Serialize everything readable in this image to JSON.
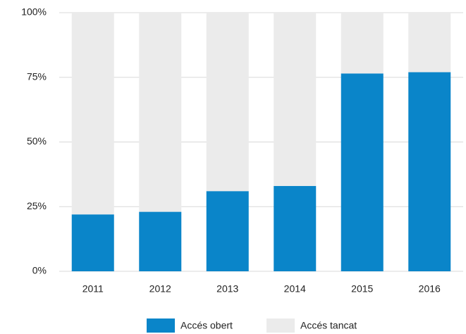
{
  "chart_data": {
    "type": "stacked_bar",
    "categories": [
      "2011",
      "2012",
      "2013",
      "2014",
      "2015",
      "2016"
    ],
    "series": [
      {
        "name": "Accés obert",
        "color": "#0a85c9",
        "values": [
          22,
          23,
          31,
          33,
          76.5,
          77
        ]
      },
      {
        "name": "Accés tancat",
        "color": "#ebebeb",
        "values": [
          78,
          77,
          69,
          67,
          23.5,
          23
        ]
      }
    ],
    "ylim": [
      0,
      100
    ],
    "yticks": [
      {
        "value": 0,
        "label": "0%"
      },
      {
        "value": 25,
        "label": "25%"
      },
      {
        "value": 50,
        "label": "50%"
      },
      {
        "value": 75,
        "label": "75%"
      },
      {
        "value": 100,
        "label": "100%"
      }
    ],
    "grid": true,
    "legend": "bottom"
  }
}
